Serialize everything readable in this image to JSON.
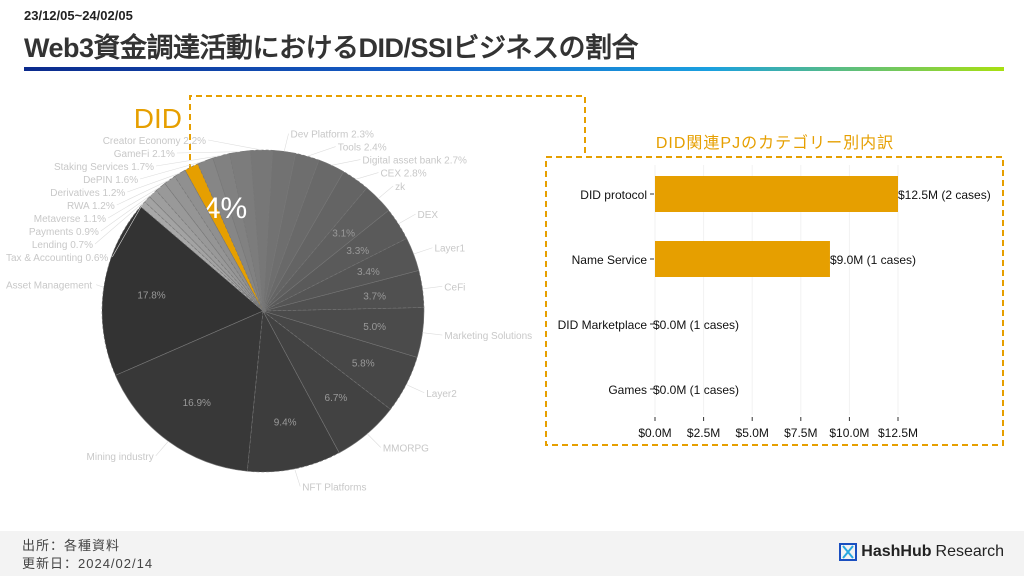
{
  "header": {
    "period": "23/12/05~24/02/05",
    "title": "Web3資金調達活動におけるDID/SSIビジネスの割合"
  },
  "footer": {
    "source": "出所：各種資料",
    "updated": "更新日：2024/02/14",
    "logo_bold": "HashHub",
    "logo_light": "Research"
  },
  "accent": "#E69F00",
  "chart_data": [
    {
      "type": "pie",
      "highlight": "DID",
      "slices": [
        {
          "label": "Asset Management",
          "value": 17.8
        },
        {
          "label": "Mining industry",
          "value": 16.9
        },
        {
          "label": "NFT Platforms",
          "value": 9.4
        },
        {
          "label": "MMORPG",
          "value": 6.7
        },
        {
          "label": "Layer2",
          "value": 5.8
        },
        {
          "label": "Marketing Solutions",
          "value": 5.0
        },
        {
          "label": "CeFi",
          "value": 3.7
        },
        {
          "label": "Layer1",
          "value": 3.4
        },
        {
          "label": "DEX",
          "value": 3.3
        },
        {
          "label": "zk",
          "value": 3.1
        },
        {
          "label": "CEX",
          "value": 2.8
        },
        {
          "label": "Digital asset bank",
          "value": 2.7
        },
        {
          "label": "Tools",
          "value": 2.4
        },
        {
          "label": "Dev Platform",
          "value": 2.3
        },
        {
          "label": "Creator Economy",
          "value": 2.2
        },
        {
          "label": "GameFi",
          "value": 2.1
        },
        {
          "label": "Staking Services",
          "value": 1.7
        },
        {
          "label": "DePIN",
          "value": 1.6
        },
        {
          "label": "DID",
          "value": 1.4
        },
        {
          "label": "Derivatives",
          "value": 1.2
        },
        {
          "label": "RWA",
          "value": 1.2
        },
        {
          "label": "Metaverse",
          "value": 1.1
        },
        {
          "label": "Payments",
          "value": 0.9
        },
        {
          "label": "Lending",
          "value": 0.7
        },
        {
          "label": "Tax & Accounting",
          "value": 0.6
        }
      ]
    },
    {
      "type": "bar",
      "orientation": "horizontal",
      "title": "DID関連PJのカテゴリー別内訳",
      "categories": [
        "DID protocol",
        "Name Service",
        "DID Marketplace",
        "Games"
      ],
      "values": [
        12.5,
        9.0,
        0.0,
        0.0
      ],
      "data_labels": [
        "$12.5M (2 cases)",
        "$9.0M (1 cases)",
        "$0.0M (1 cases)",
        "$0.0M (1 cases)"
      ],
      "xticks": [
        "$0.0M",
        "$2.5M",
        "$5.0M",
        "$7.5M",
        "$10.0M",
        "$12.5M"
      ],
      "xlim": [
        0,
        12.5
      ],
      "color": "#E69F00"
    }
  ]
}
